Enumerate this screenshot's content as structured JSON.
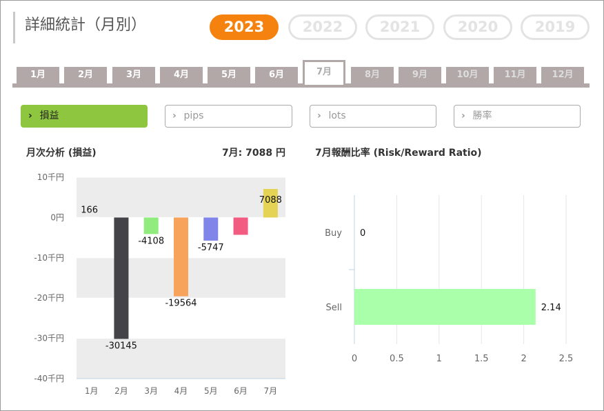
{
  "header": {
    "title": "詳細統計（月別）"
  },
  "years": [
    {
      "label": "2023",
      "active": true
    },
    {
      "label": "2022",
      "active": false
    },
    {
      "label": "2021",
      "active": false
    },
    {
      "label": "2020",
      "active": false
    },
    {
      "label": "2019",
      "active": false
    }
  ],
  "months": [
    {
      "label": "1月",
      "state": "normal"
    },
    {
      "label": "2月",
      "state": "normal"
    },
    {
      "label": "3月",
      "state": "normal"
    },
    {
      "label": "4月",
      "state": "normal"
    },
    {
      "label": "5月",
      "state": "normal"
    },
    {
      "label": "6月",
      "state": "normal"
    },
    {
      "label": "7月",
      "state": "active"
    },
    {
      "label": "8月",
      "state": "future"
    },
    {
      "label": "9月",
      "state": "future"
    },
    {
      "label": "10月",
      "state": "future"
    },
    {
      "label": "11月",
      "state": "future"
    },
    {
      "label": "12月",
      "state": "future"
    }
  ],
  "metrics": [
    {
      "label": "損益",
      "active": true
    },
    {
      "label": "pips",
      "active": false
    },
    {
      "label": "lots",
      "active": false
    },
    {
      "label": "勝率",
      "active": false
    }
  ],
  "left_panel": {
    "title": "月次分析 (損益)",
    "summary": "7月:  7088 円"
  },
  "right_panel": {
    "title": "7月報酬比率 (Risk/Reward Ratio)"
  },
  "colors": {
    "accent_orange": "#f5820f",
    "accent_green": "#8ec63f",
    "tab_gray": "#b3a8a8"
  },
  "chart_data": [
    {
      "type": "bar",
      "title": "月次分析 (損益)",
      "categories": [
        "1月",
        "2月",
        "3月",
        "4月",
        "5月",
        "6月",
        "7月"
      ],
      "values": [
        166,
        -30145,
        -4108,
        -19564,
        -5747,
        -4300,
        7088
      ],
      "value_labels": [
        "166",
        "-30145",
        "-4108",
        "-19564",
        "-5747",
        "",
        "7088"
      ],
      "bar_colors": [
        "#ffffff",
        "#434348",
        "#90ed7d",
        "#f7a35c",
        "#8085e9",
        "#f15c80",
        "#e4d354"
      ],
      "yticks": [
        "10千円",
        "0円",
        "-10千円",
        "-20千円",
        "-30千円",
        "-40千円"
      ],
      "ytick_values": [
        10000,
        0,
        -10000,
        -20000,
        -30000,
        -40000
      ],
      "ylim": [
        -40000,
        10000
      ],
      "grid": true
    },
    {
      "type": "bar",
      "orientation": "horizontal",
      "title": "7月報酬比率 (Risk/Reward Ratio)",
      "categories": [
        "Buy",
        "Sell"
      ],
      "values": [
        0,
        2.14
      ],
      "value_labels": [
        "0",
        "2.14"
      ],
      "bar_color": "#aaffaa",
      "xticks": [
        "0",
        "0.5",
        "1",
        "1.5",
        "2",
        "2.5"
      ],
      "xtick_values": [
        0,
        0.5,
        1,
        1.5,
        2,
        2.5
      ],
      "xlim": [
        0,
        2.5
      ],
      "grid": true
    }
  ]
}
